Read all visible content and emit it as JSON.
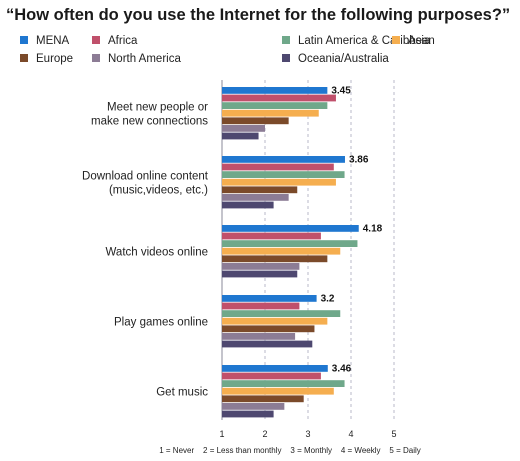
{
  "chart_data": {
    "type": "bar",
    "orientation": "horizontal",
    "title": "“How often do you use the Internet for the following purposes?”",
    "categories": [
      "Meet new people or\nmake new connections",
      "Download online content\n(music,videos, etc.)",
      "Watch videos online",
      "Play games online",
      "Get music"
    ],
    "series": [
      {
        "name": "MENA",
        "color": "#1f77d0",
        "values": [
          3.45,
          3.86,
          4.18,
          3.2,
          3.46
        ]
      },
      {
        "name": "Africa",
        "color": "#c0506b",
        "values": [
          3.65,
          3.6,
          3.3,
          2.8,
          3.3
        ]
      },
      {
        "name": "Latin America & Caribbean",
        "color": "#6fa88a",
        "values": [
          3.45,
          3.85,
          4.15,
          3.75,
          3.85
        ]
      },
      {
        "name": "Asia",
        "color": "#f5ae4f",
        "values": [
          3.25,
          3.65,
          3.75,
          3.45,
          3.6
        ]
      },
      {
        "name": "Europe",
        "color": "#7b4a2a",
        "values": [
          2.55,
          2.75,
          3.45,
          3.15,
          2.9
        ]
      },
      {
        "name": "North America",
        "color": "#8c7c95",
        "values": [
          2.0,
          2.55,
          2.8,
          2.7,
          2.45
        ]
      },
      {
        "name": "Oceania/Australia",
        "color": "#4e4870",
        "values": [
          1.85,
          2.2,
          2.75,
          3.1,
          2.2
        ]
      }
    ],
    "data_labels": [
      "3.45",
      "3.86",
      "4.18",
      "3.2",
      "3.46"
    ],
    "xlim": [
      1,
      5
    ],
    "xticks": [
      "1",
      "2",
      "3",
      "4",
      "5"
    ],
    "scale_note": "1 = Never    2 = Less than monthly    3 = Monthly    4 = Weekly    5 = Daily",
    "legend_position": "top",
    "grid": "dashed vertical"
  }
}
